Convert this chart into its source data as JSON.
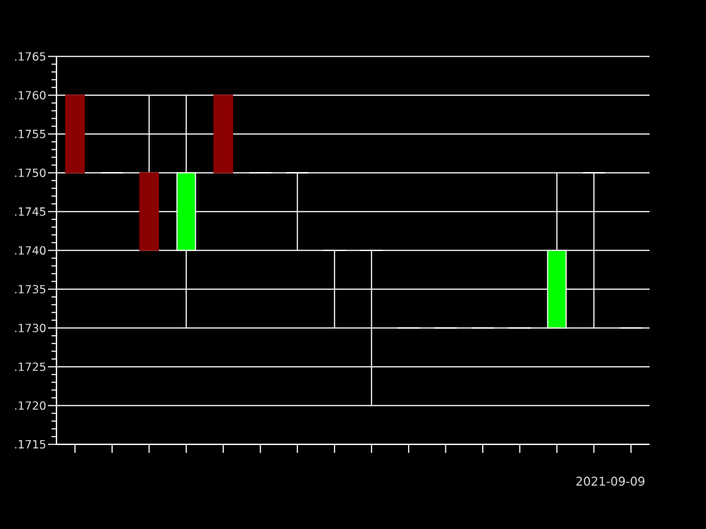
{
  "chart_data": {
    "type": "candlestick",
    "categories": [
      null,
      null,
      null,
      null,
      null,
      null,
      null,
      null,
      null,
      null,
      null,
      null,
      null,
      null,
      null,
      null
    ],
    "ohlc": [
      [
        0.176,
        0.176,
        0.175,
        0.175
      ],
      [
        0.175,
        0.175,
        0.175,
        0.175
      ],
      [
        0.175,
        0.176,
        0.174,
        0.174
      ],
      [
        0.174,
        0.176,
        0.173,
        0.175
      ],
      [
        0.176,
        0.176,
        0.175,
        0.175
      ],
      [
        0.175,
        0.175,
        0.175,
        0.175
      ],
      [
        0.175,
        0.175,
        0.174,
        0.175
      ],
      [
        0.174,
        0.174,
        0.173,
        0.174
      ],
      [
        0.174,
        0.174,
        0.172,
        0.174
      ],
      [
        0.173,
        0.173,
        0.173,
        0.173
      ],
      [
        0.173,
        0.173,
        0.173,
        0.173
      ],
      [
        0.173,
        0.173,
        0.173,
        0.173
      ],
      [
        0.173,
        0.173,
        0.173,
        0.173
      ],
      [
        0.173,
        0.175,
        0.173,
        0.174
      ],
      [
        0.175,
        0.175,
        0.173,
        0.175
      ],
      [
        0.173,
        0.173,
        0.173,
        0.173
      ]
    ],
    "colors": [
      "#8b0000",
      "#ffffff",
      "#8b0000",
      "#00ff00",
      "#8b0000",
      "#ffffff",
      "#ffffff",
      "#ffffff",
      "#ffffff",
      "#ffffff",
      "#ffffff",
      "#ffffff",
      "#ffffff",
      "#00ff00",
      "#ffffff",
      "#ffffff"
    ],
    "ylim": [
      0.1715,
      0.1765
    ],
    "yticks": [
      {
        "value": 0.1715,
        "label": ".1715"
      },
      {
        "value": 0.172,
        "label": ".1720"
      },
      {
        "value": 0.1725,
        "label": ".1725"
      },
      {
        "value": 0.173,
        "label": ".1730"
      },
      {
        "value": 0.1735,
        "label": ".1735"
      },
      {
        "value": 0.174,
        "label": ".1740"
      },
      {
        "value": 0.1745,
        "label": ".1745"
      },
      {
        "value": 0.175,
        "label": ".1750"
      },
      {
        "value": 0.1755,
        "label": ".1755"
      },
      {
        "value": 0.176,
        "label": ".1760"
      },
      {
        "value": 0.1765,
        "label": ".1765"
      }
    ],
    "grid": "y",
    "tick_labels": "y",
    "annotations": [
      "2021-09-09"
    ]
  }
}
